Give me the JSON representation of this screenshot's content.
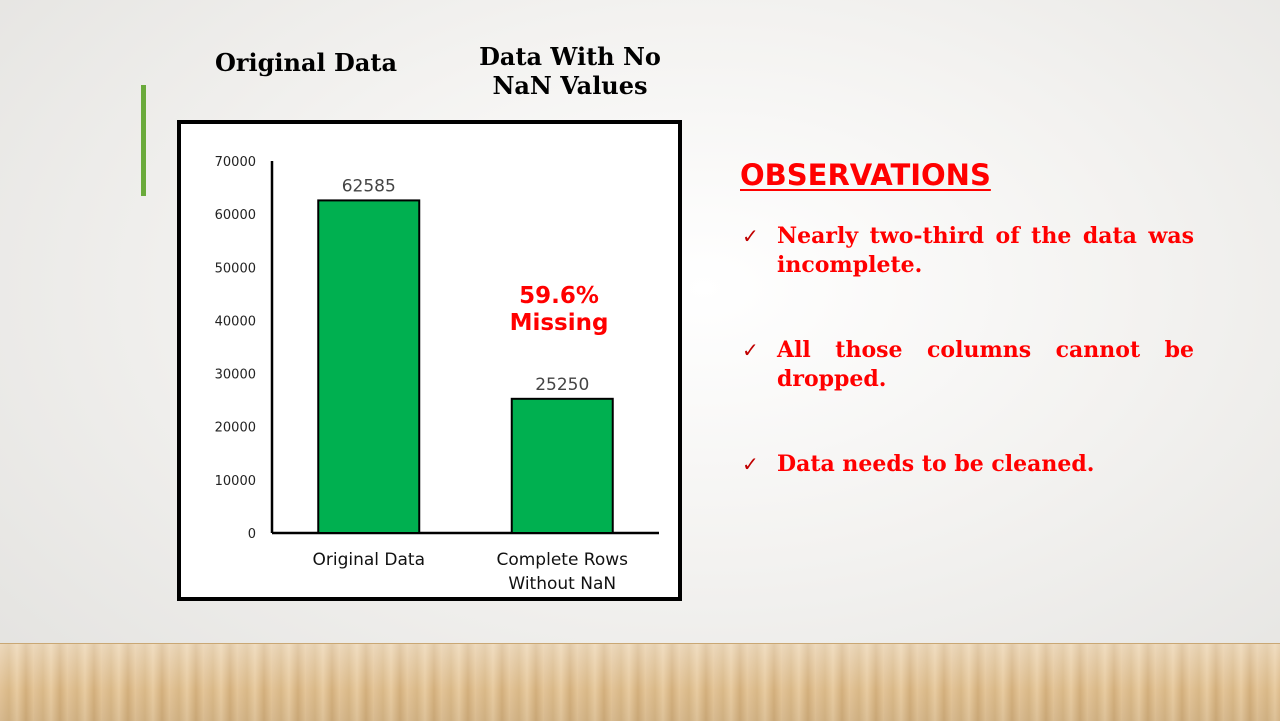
{
  "headers": {
    "left": "Original Data",
    "right_line1": "Data With No",
    "right_line2": "NaN Values"
  },
  "annotation": {
    "line1": "59.6%",
    "line2": "Missing"
  },
  "observations": {
    "title": "OBSERVATIONS",
    "items": [
      "Nearly two-third of the data was incomplete.",
      "All those columns cannot be dropped.",
      "Data needs to be cleaned."
    ]
  },
  "colors": {
    "bar_fill": "#00b050",
    "text_red": "#ff0000",
    "accent_green": "#6aaa3b"
  },
  "chart_data": {
    "type": "bar",
    "categories": [
      [
        "Original Data"
      ],
      [
        "Complete Rows",
        "Without NaN"
      ]
    ],
    "values": [
      62585,
      25250
    ],
    "data_labels": [
      "62585",
      "25250"
    ],
    "yticks": [
      0,
      10000,
      20000,
      30000,
      40000,
      50000,
      60000,
      70000
    ],
    "ylim": [
      0,
      70000
    ],
    "grid": false,
    "title": "",
    "xlabel": "",
    "ylabel": ""
  }
}
